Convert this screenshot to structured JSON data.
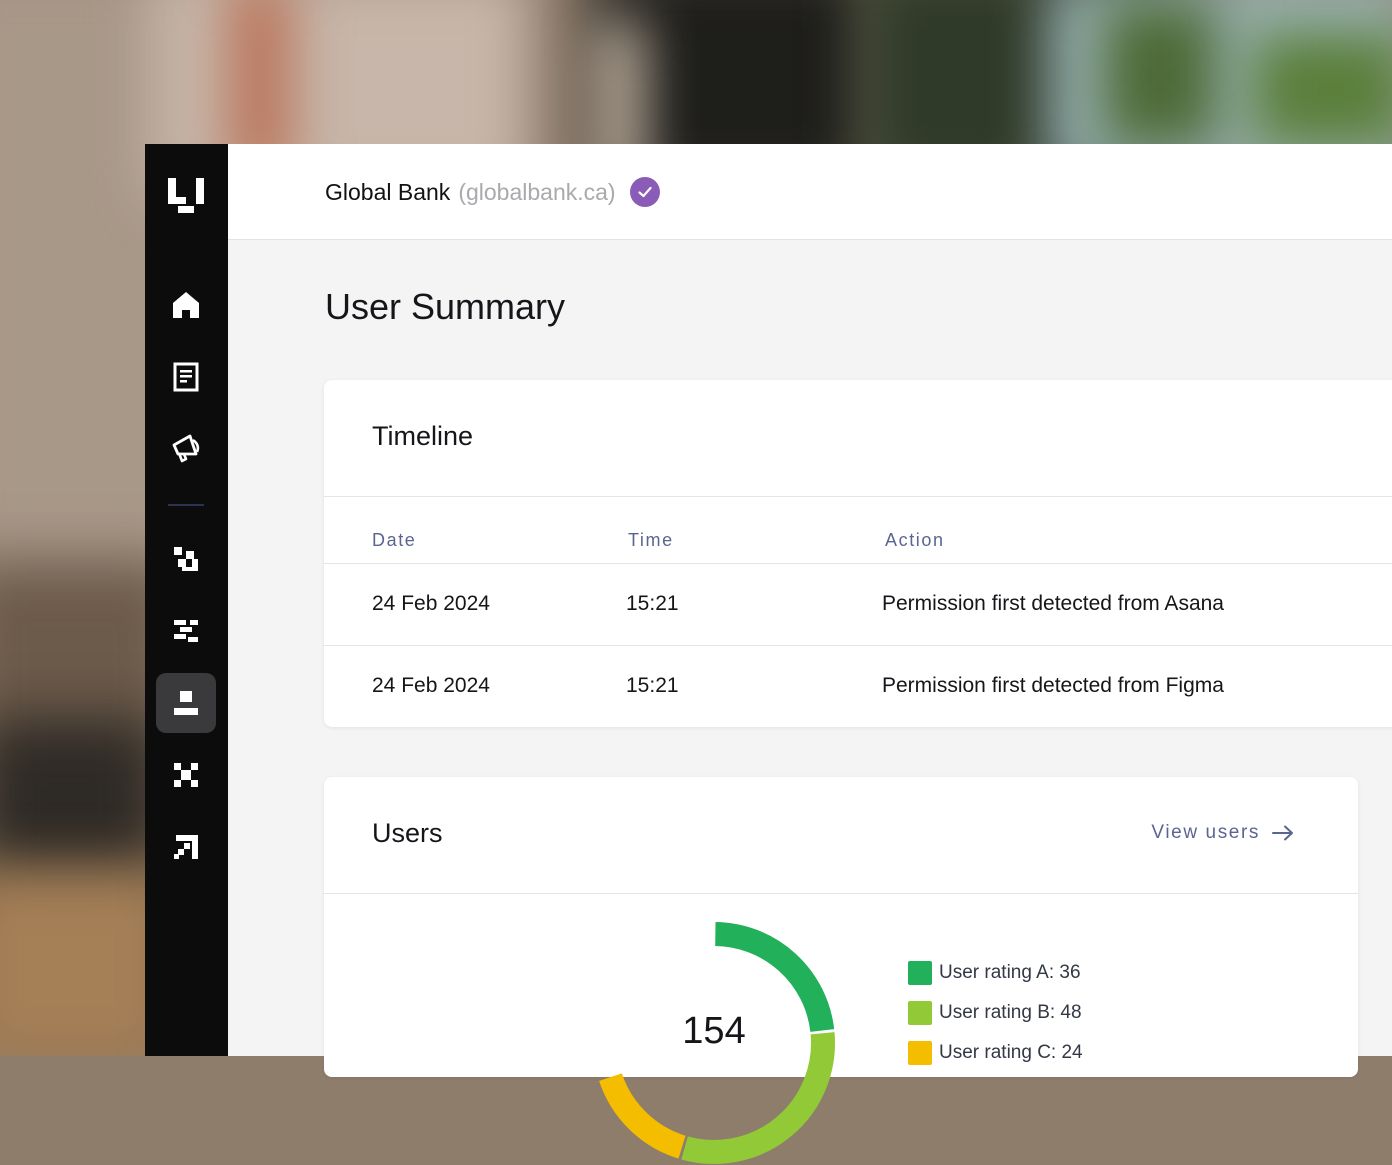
{
  "colors": {
    "sidebar_bg": "#0c0c0c",
    "accent_purple": "#8a5cb8",
    "header_text": "#5a6590",
    "rating_a": "#22b05a",
    "rating_b": "#92c936",
    "rating_c": "#f4bd00"
  },
  "sidebar": {
    "items": [
      {
        "icon": "logo-icon"
      },
      {
        "icon": "home-icon"
      },
      {
        "icon": "document-icon"
      },
      {
        "icon": "megaphone-icon"
      },
      {
        "icon": "pixel-grid-icon"
      },
      {
        "icon": "pixel-list-icon"
      },
      {
        "icon": "user-icon",
        "active": true
      },
      {
        "icon": "pixel-x-icon"
      },
      {
        "icon": "pixel-arrow-icon"
      }
    ]
  },
  "header": {
    "org_name": "Global Bank",
    "org_domain": "(globalbank.ca)",
    "verified_icon": "check-circle-icon"
  },
  "page": {
    "title": "User Summary"
  },
  "timeline": {
    "title": "Timeline",
    "columns": [
      "Date",
      "Time",
      "Action"
    ],
    "rows": [
      {
        "date": "24 Feb 2024",
        "time": "15:21",
        "action": "Permission first detected from Asana"
      },
      {
        "date": "24 Feb 2024",
        "time": "15:21",
        "action": "Permission first detected from Figma"
      }
    ]
  },
  "users": {
    "title": "Users",
    "view_link": "View users",
    "total": "154",
    "legend": [
      {
        "label": "User rating A: 36",
        "value": 36
      },
      {
        "label": "User rating B: 48",
        "value": 48
      },
      {
        "label": "User rating C: 24",
        "value": 24
      }
    ]
  }
}
